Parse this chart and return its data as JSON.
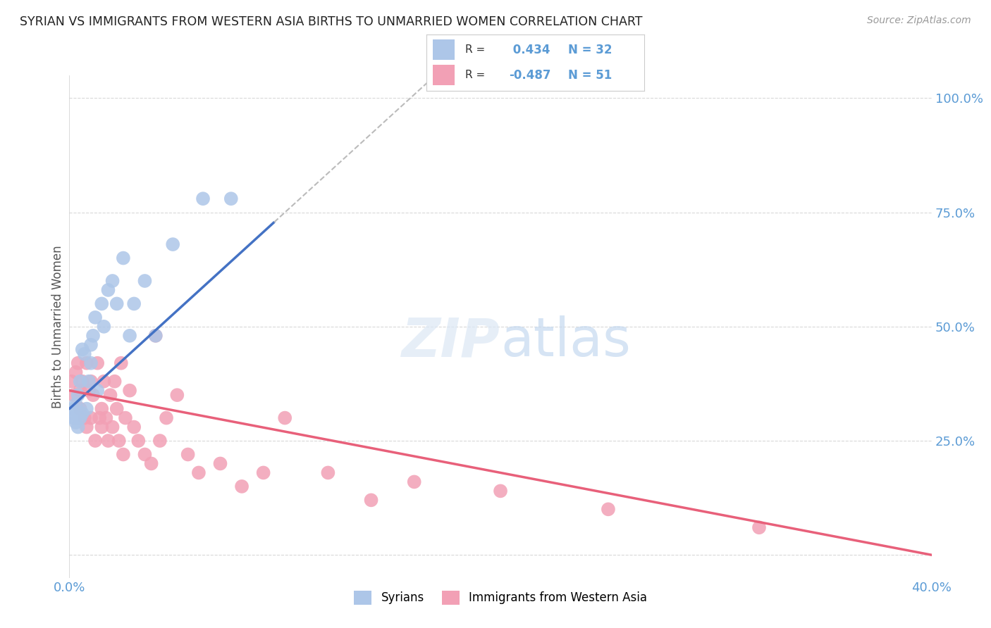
{
  "title": "SYRIAN VS IMMIGRANTS FROM WESTERN ASIA BIRTHS TO UNMARRIED WOMEN CORRELATION CHART",
  "source": "Source: ZipAtlas.com",
  "ylabel": "Births to Unmarried Women",
  "legend_syrians": "Syrians",
  "legend_immigrants": "Immigrants from Western Asia",
  "r_syrians": 0.434,
  "n_syrians": 32,
  "r_immigrants": -0.487,
  "n_immigrants": 51,
  "color_syrians": "#adc6e8",
  "color_immigrants": "#f2a0b5",
  "color_syrians_line": "#4472c4",
  "color_immigrants_line": "#e8607a",
  "color_text_blue": "#5b9bd5",
  "xlim": [
    0.0,
    0.4
  ],
  "ylim": [
    -0.05,
    1.05
  ],
  "yticks": [
    0.0,
    0.25,
    0.5,
    0.75,
    1.0
  ],
  "ytick_labels_right": [
    "",
    "25.0%",
    "50.0%",
    "75.0%",
    "100.0%"
  ],
  "xticks": [
    0.0,
    0.1,
    0.2,
    0.3,
    0.4
  ],
  "xtick_labels": [
    "0.0%",
    "",
    "",
    "",
    "40.0%"
  ],
  "syrians_x": [
    0.001,
    0.002,
    0.002,
    0.003,
    0.003,
    0.004,
    0.004,
    0.005,
    0.005,
    0.006,
    0.006,
    0.007,
    0.008,
    0.009,
    0.01,
    0.01,
    0.011,
    0.012,
    0.013,
    0.015,
    0.016,
    0.018,
    0.02,
    0.022,
    0.025,
    0.028,
    0.03,
    0.035,
    0.04,
    0.048,
    0.062,
    0.075
  ],
  "syrians_y": [
    0.31,
    0.3,
    0.32,
    0.29,
    0.33,
    0.28,
    0.35,
    0.3,
    0.38,
    0.31,
    0.45,
    0.44,
    0.32,
    0.38,
    0.42,
    0.46,
    0.48,
    0.52,
    0.36,
    0.55,
    0.5,
    0.58,
    0.6,
    0.55,
    0.65,
    0.48,
    0.55,
    0.6,
    0.48,
    0.68,
    0.78,
    0.78
  ],
  "immigrants_x": [
    0.001,
    0.002,
    0.003,
    0.004,
    0.005,
    0.005,
    0.006,
    0.007,
    0.008,
    0.008,
    0.009,
    0.01,
    0.01,
    0.011,
    0.012,
    0.013,
    0.014,
    0.015,
    0.015,
    0.016,
    0.017,
    0.018,
    0.019,
    0.02,
    0.021,
    0.022,
    0.023,
    0.024,
    0.025,
    0.026,
    0.028,
    0.03,
    0.032,
    0.035,
    0.038,
    0.04,
    0.042,
    0.045,
    0.05,
    0.055,
    0.06,
    0.07,
    0.08,
    0.09,
    0.1,
    0.12,
    0.14,
    0.16,
    0.2,
    0.25,
    0.32
  ],
  "immigrants_y": [
    0.38,
    0.35,
    0.4,
    0.42,
    0.32,
    0.36,
    0.38,
    0.3,
    0.42,
    0.28,
    0.36,
    0.38,
    0.3,
    0.35,
    0.25,
    0.42,
    0.3,
    0.32,
    0.28,
    0.38,
    0.3,
    0.25,
    0.35,
    0.28,
    0.38,
    0.32,
    0.25,
    0.42,
    0.22,
    0.3,
    0.36,
    0.28,
    0.25,
    0.22,
    0.2,
    0.48,
    0.25,
    0.3,
    0.35,
    0.22,
    0.18,
    0.2,
    0.15,
    0.18,
    0.3,
    0.18,
    0.12,
    0.16,
    0.14,
    0.1,
    0.06
  ],
  "background_color": "#ffffff",
  "grid_color": "#d8d8d8"
}
